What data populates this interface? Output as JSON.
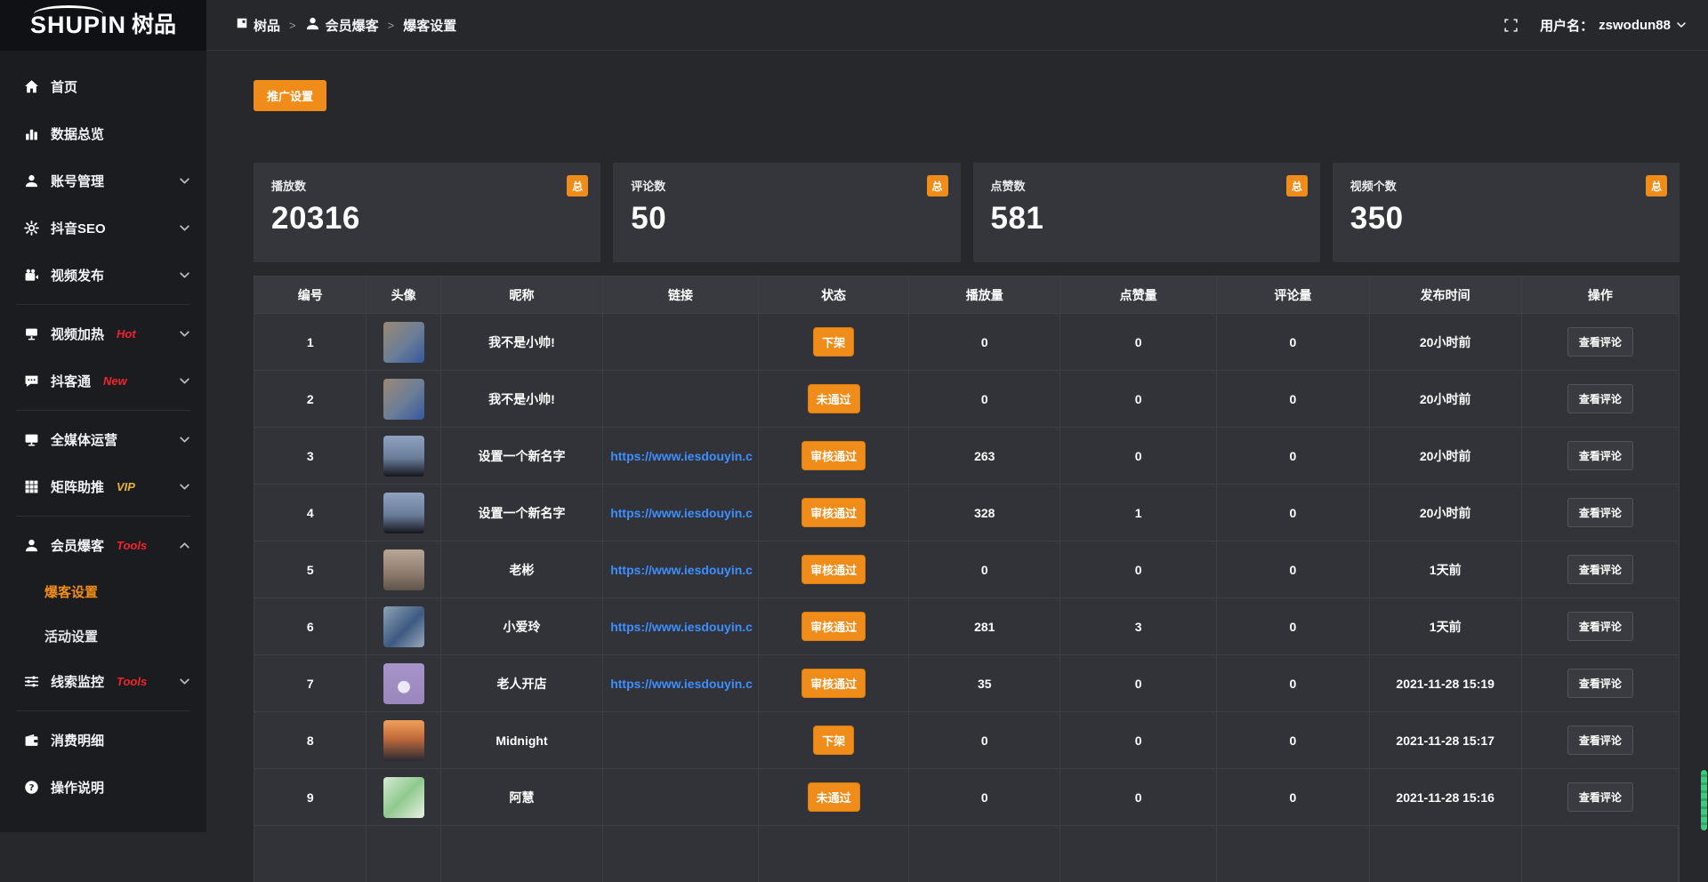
{
  "brand": {
    "logo_text": "SHUPIN",
    "logo_cn": "树品"
  },
  "topbar": {
    "breadcrumb": [
      {
        "label": "树品",
        "icon": "dashboard-icon"
      },
      {
        "label": "会员爆客",
        "icon": "user-icon"
      },
      {
        "label": "爆客设置",
        "icon": null
      }
    ],
    "separator": ">",
    "username_label": "用户名：",
    "username": "zswodun88"
  },
  "toolbar": {
    "promo_button": "推广设置"
  },
  "colors": {
    "accent_orange": "#f08c19",
    "link_blue": "#3d8eff",
    "badge_red": "#f5222d",
    "badge_gold": "#e7b432",
    "scrollbar_green": "#43c87f"
  },
  "sidebar": {
    "items": [
      {
        "id": "home",
        "icon": "home-icon",
        "label": "首页"
      },
      {
        "id": "data-overview",
        "icon": "chart-icon",
        "label": "数据总览"
      },
      {
        "id": "account-manage",
        "icon": "user-icon",
        "label": "账号管理",
        "chevron": "down"
      },
      {
        "id": "douyin-seo",
        "icon": "gear-icon",
        "label": "抖音SEO",
        "chevron": "down"
      },
      {
        "id": "video-publish",
        "icon": "video-icon",
        "label": "视频发布",
        "chevron": "down"
      },
      {
        "type": "divider"
      },
      {
        "id": "video-heat",
        "icon": "screen-icon",
        "label": "视频加热",
        "badge": "Hot",
        "badge_color": "#f5222d",
        "chevron": "down"
      },
      {
        "id": "douketong",
        "icon": "chat-icon",
        "label": "抖客通",
        "badge": "New",
        "badge_color": "#f5222d",
        "chevron": "down"
      },
      {
        "type": "divider"
      },
      {
        "id": "media-ops",
        "icon": "monitor-icon",
        "label": "全媒体运营",
        "chevron": "down"
      },
      {
        "id": "matrix-boost",
        "icon": "grid-icon",
        "label": "矩阵助推",
        "badge": "VIP",
        "badge_color": "#e7b432",
        "chevron": "down"
      },
      {
        "type": "divider"
      },
      {
        "id": "member-baoke",
        "icon": "user-icon",
        "label": "会员爆客",
        "badge": "Tools",
        "badge_color": "#f5222d",
        "chevron": "up",
        "children": [
          {
            "id": "baoke-setting",
            "label": "爆客设置",
            "active": true
          },
          {
            "id": "activity-setting",
            "label": "活动设置"
          }
        ]
      },
      {
        "id": "clue-monitor",
        "icon": "sliders-icon",
        "label": "线索监控",
        "badge": "Tools",
        "badge_color": "#f5222d",
        "chevron": "down"
      },
      {
        "type": "divider"
      },
      {
        "id": "consume-detail",
        "icon": "wallet-icon",
        "label": "消费明细"
      },
      {
        "id": "op-guide",
        "icon": "help-icon",
        "label": "操作说明"
      }
    ]
  },
  "stats": [
    {
      "id": "plays",
      "label": "播放数",
      "value": "20316",
      "badge": "总"
    },
    {
      "id": "comments",
      "label": "评论数",
      "value": "50",
      "badge": "总"
    },
    {
      "id": "likes",
      "label": "点赞数",
      "value": "581",
      "badge": "总"
    },
    {
      "id": "videos",
      "label": "视频个数",
      "value": "350",
      "badge": "总"
    }
  ],
  "table": {
    "columns": [
      "编号",
      "头像",
      "昵称",
      "链接",
      "状态",
      "播放量",
      "点赞量",
      "评论量",
      "发布时间",
      "操作"
    ],
    "action_label": "查看评论",
    "rows": [
      {
        "id": "1",
        "nickname": "我不是小帅!",
        "link": "",
        "status": "下架",
        "plays": "0",
        "likes": "0",
        "comments": "0",
        "time": "20小时前",
        "avatar": {
          "desc": "young-man-selfie",
          "gradient": "linear-gradient(135deg,#9b8874 0%,#6b7e96 55%,#3657a0 100%)"
        }
      },
      {
        "id": "2",
        "nickname": "我不是小帅!",
        "link": "",
        "status": "未通过",
        "plays": "0",
        "likes": "0",
        "comments": "0",
        "time": "20小时前",
        "avatar": {
          "desc": "young-man-selfie",
          "gradient": "linear-gradient(135deg,#9b8874 0%,#6b7e96 55%,#3657a0 100%)"
        }
      },
      {
        "id": "3",
        "nickname": "设置一个新名字",
        "link": "https://www.iesdouyin.c",
        "status": "审核通过",
        "plays": "263",
        "likes": "0",
        "comments": "0",
        "time": "20小时前",
        "avatar": {
          "desc": "evening-sky-silhouette",
          "gradient": "linear-gradient(180deg,#8fa3c0 0%,#6a7d9a 55%,#15161c 100%)"
        }
      },
      {
        "id": "4",
        "nickname": "设置一个新名字",
        "link": "https://www.iesdouyin.c",
        "status": "审核通过",
        "plays": "328",
        "likes": "1",
        "comments": "0",
        "time": "20小时前",
        "avatar": {
          "desc": "evening-sky-silhouette",
          "gradient": "linear-gradient(180deg,#8fa3c0 0%,#6a7d9a 55%,#15161c 100%)"
        }
      },
      {
        "id": "5",
        "nickname": "老彬",
        "link": "https://www.iesdouyin.c",
        "status": "审核通过",
        "plays": "0",
        "likes": "0",
        "comments": "0",
        "time": "1天前",
        "avatar": {
          "desc": "middle-aged-man-face",
          "gradient": "linear-gradient(180deg,#b8a695 0%,#8d7a6c 60%,#5f544c 100%)"
        }
      },
      {
        "id": "6",
        "nickname": "小爱玲",
        "link": "https://www.iesdouyin.c",
        "status": "审核通过",
        "plays": "281",
        "likes": "3",
        "comments": "0",
        "time": "1天前",
        "avatar": {
          "desc": "woman-in-blue",
          "gradient": "linear-gradient(135deg,#8fa3b8 0%,#3d5a80 55%,#9aa8bd 100%)"
        }
      },
      {
        "id": "7",
        "nickname": "老人开店",
        "link": "https://www.iesdouyin.c",
        "status": "审核通过",
        "plays": "35",
        "likes": "0",
        "comments": "0",
        "time": "2021-11-28 15:19",
        "avatar": {
          "desc": "purple-cartoon-character",
          "gradient": "radial-gradient(circle at 50% 58%,#ece8f5 0 19%,transparent 20%),linear-gradient(180deg,#a694c8 0%,#9a87bd 100%)"
        }
      },
      {
        "id": "8",
        "nickname": "Midnight",
        "link": "",
        "status": "下架",
        "plays": "0",
        "likes": "0",
        "comments": "0",
        "time": "2021-11-28 15:17",
        "avatar": {
          "desc": "sunset-over-sea",
          "gradient": "linear-gradient(180deg,#f0a05a 0%,#c06a3a 45%,#2a2a35 100%)"
        }
      },
      {
        "id": "9",
        "nickname": "阿慧",
        "link": "",
        "status": "未通过",
        "plays": "0",
        "likes": "0",
        "comments": "0",
        "time": "2021-11-28 15:16",
        "avatar": {
          "desc": "green-map-pattern",
          "gradient": "linear-gradient(135deg,#d5ead2 0%,#8fc98f 50%,#eaf2e2 100%)"
        }
      }
    ]
  }
}
